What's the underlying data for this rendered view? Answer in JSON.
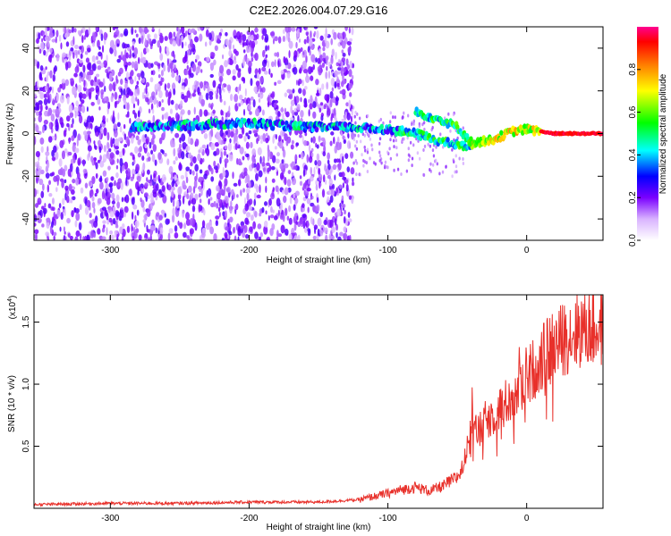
{
  "title": "C2E2.2026.004.07.29.G16",
  "chart_data": [
    {
      "type": "heatmap",
      "name": "spectrogram",
      "xlabel": "Height of straight line (km)",
      "ylabel": "Frequency (Hz)",
      "xlim": [
        -355,
        55
      ],
      "ylim": [
        -50,
        50
      ],
      "xticks": [
        -300,
        -200,
        -100,
        0
      ],
      "yticks": [
        -40,
        -20,
        0,
        20,
        40
      ],
      "xtick_labels": [
        "-300",
        "-200",
        "-100",
        "0"
      ],
      "ytick_labels": [
        "-40",
        "-20",
        "0",
        "20",
        "40"
      ],
      "colorbar": {
        "label": "Normalized spectral amplitude",
        "range": [
          0.0,
          1.0
        ],
        "ticks": [
          0.0,
          0.2,
          0.4,
          0.6,
          0.8
        ],
        "tick_labels": [
          "0.0",
          "0.2",
          "0.4",
          "0.6",
          "0.8"
        ]
      },
      "traces": [
        {
          "name": "main line",
          "x": [
            -285,
            -240,
            -200,
            -160,
            -130,
            -100,
            -80,
            -60,
            -45,
            -35,
            -25,
            -10,
            0,
            20,
            55
          ],
          "y": [
            3,
            4,
            5,
            3,
            3,
            2,
            0,
            -4,
            -6,
            -4,
            -3,
            1,
            2,
            0,
            0
          ]
        },
        {
          "name": "upper branch",
          "x": [
            -80,
            -70,
            -60,
            -50,
            -40
          ],
          "y": [
            10,
            8,
            6,
            3,
            -4
          ]
        }
      ]
    },
    {
      "type": "line",
      "name": "snr",
      "xlabel": "Height of straight line (km)",
      "ylabel": "SNR (10 * v/v)",
      "scale_label": "(x10",
      "scale_exp": "4",
      "xlim": [
        -355,
        55
      ],
      "ylim": [
        0,
        1.72
      ],
      "xticks": [
        -300,
        -200,
        -100,
        0
      ],
      "yticks": [
        0.5,
        1.0,
        1.5
      ],
      "xtick_labels": [
        "-300",
        "-200",
        "-100",
        "0"
      ],
      "ytick_labels": [
        "0.5",
        "1.0",
        "1.5"
      ],
      "color": "#e8302a",
      "series": [
        {
          "name": "SNR",
          "x": [
            -355,
            -300,
            -250,
            -200,
            -150,
            -120,
            -100,
            -90,
            -80,
            -70,
            -60,
            -50,
            -45,
            -40,
            -35,
            -30,
            -20,
            -10,
            0,
            10,
            20,
            30,
            40,
            55
          ],
          "y": [
            0.03,
            0.04,
            0.04,
            0.05,
            0.05,
            0.07,
            0.12,
            0.15,
            0.17,
            0.14,
            0.18,
            0.25,
            0.35,
            0.8,
            0.6,
            0.7,
            0.8,
            0.9,
            1.05,
            1.2,
            1.3,
            1.4,
            1.45,
            1.45
          ]
        }
      ]
    }
  ]
}
